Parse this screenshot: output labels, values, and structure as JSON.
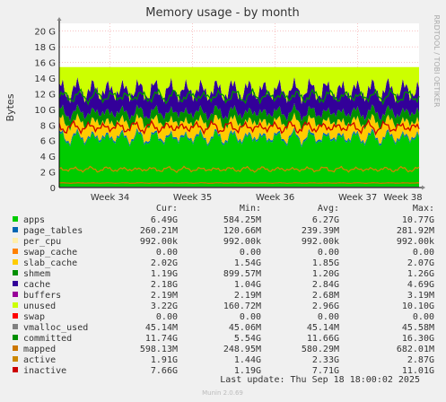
{
  "chart_data": {
    "type": "area",
    "title": "Memory usage - by month",
    "ylabel": "Bytes",
    "side_label": "RRDTOOL / TOBI OETIKER",
    "ylim": [
      0,
      21
    ],
    "yticks": [
      {
        "v": 0,
        "label": "0"
      },
      {
        "v": 2,
        "label": "2 G"
      },
      {
        "v": 4,
        "label": "4 G"
      },
      {
        "v": 6,
        "label": "6 G"
      },
      {
        "v": 8,
        "label": "8 G"
      },
      {
        "v": 10,
        "label": "10 G"
      },
      {
        "v": 12,
        "label": "12 G"
      },
      {
        "v": 14,
        "label": "14 G"
      },
      {
        "v": 16,
        "label": "16 G"
      },
      {
        "v": 18,
        "label": "18 G"
      },
      {
        "v": 20,
        "label": "20 G"
      }
    ],
    "xlim": [
      0,
      30.5
    ],
    "xticks": [
      {
        "v": 4.3,
        "label": "Week 34"
      },
      {
        "v": 11.3,
        "label": "Week 35"
      },
      {
        "v": 18.3,
        "label": "Week 36"
      },
      {
        "v": 25.3,
        "label": "Week 37"
      },
      {
        "v": 32.3,
        "label": "Week 38"
      }
    ],
    "stack_order": [
      "apps",
      "page_tables",
      "per_cpu",
      "swap_cache",
      "slab_cache",
      "shmem",
      "cache",
      "buffers",
      "unused",
      "swap"
    ],
    "line_order": [
      "vmalloc_used",
      "committed",
      "mapped",
      "active",
      "inactive"
    ],
    "columns": {
      "cur": "Cur:",
      "min": "Min:",
      "avg": "Avg:",
      "max": "Max:"
    },
    "series": [
      {
        "key": "apps",
        "name": "apps",
        "color": "#00cc00",
        "cur": "6.49G",
        "min": "584.25M",
        "avg": "6.27G",
        "max": "10.77G",
        "base": 6.3,
        "amp": 1.2
      },
      {
        "key": "page_tables",
        "name": "page_tables",
        "color": "#0066b3",
        "cur": "260.21M",
        "min": "120.66M",
        "avg": "239.39M",
        "max": "281.92M",
        "base": 0.24,
        "amp": 0.02
      },
      {
        "key": "per_cpu",
        "name": "per_cpu",
        "color": "#ffeeaa",
        "cur": "992.00k",
        "min": "992.00k",
        "avg": "992.00k",
        "max": "992.00k",
        "base": 0.001,
        "amp": 0
      },
      {
        "key": "swap_cache",
        "name": "swap_cache",
        "color": "#ff8000",
        "cur": "0.00",
        "min": "0.00",
        "avg": "0.00",
        "max": "0.00",
        "base": 0,
        "amp": 0
      },
      {
        "key": "slab_cache",
        "name": "slab_cache",
        "color": "#ffcc00",
        "cur": "2.02G",
        "min": "1.54G",
        "avg": "1.85G",
        "max": "2.07G",
        "base": 1.85,
        "amp": 0.25
      },
      {
        "key": "shmem",
        "name": "shmem",
        "color": "#008f00",
        "cur": "1.19G",
        "min": "899.57M",
        "avg": "1.20G",
        "max": "1.26G",
        "base": 1.2,
        "amp": 0.08
      },
      {
        "key": "cache",
        "name": "cache",
        "color": "#330099",
        "cur": "2.18G",
        "min": "1.04G",
        "avg": "2.84G",
        "max": "4.69G",
        "base": 2.84,
        "amp": 0.9
      },
      {
        "key": "buffers",
        "name": "buffers",
        "color": "#990099",
        "cur": "2.19M",
        "min": "2.19M",
        "avg": "2.68M",
        "max": "3.19M",
        "base": 0.003,
        "amp": 0
      },
      {
        "key": "unused",
        "name": "unused",
        "color": "#ccff00",
        "cur": "3.22G",
        "min": "160.72M",
        "avg": "2.96G",
        "max": "10.10G",
        "base": 2.96,
        "amp": 0
      },
      {
        "key": "swap",
        "name": "swap",
        "color": "#ff0000",
        "cur": "0.00",
        "min": "0.00",
        "avg": "0.00",
        "max": "0.00",
        "base": 0,
        "amp": 0
      },
      {
        "key": "vmalloc_used",
        "name": "vmalloc_used",
        "color": "#808080",
        "cur": "45.14M",
        "min": "45.06M",
        "avg": "45.14M",
        "max": "45.58M",
        "base": 0.045,
        "amp": 0
      },
      {
        "key": "committed",
        "name": "committed",
        "color": "#008f00",
        "cur": "11.74G",
        "min": "5.54G",
        "avg": "11.66G",
        "max": "16.30G",
        "base": 11.66,
        "amp": 1.0
      },
      {
        "key": "mapped",
        "name": "mapped",
        "color": "#cc7700",
        "cur": "598.13M",
        "min": "248.95M",
        "avg": "580.29M",
        "max": "682.01M",
        "base": 0.58,
        "amp": 0.05
      },
      {
        "key": "active",
        "name": "active",
        "color": "#cc8800",
        "cur": "1.91G",
        "min": "1.44G",
        "avg": "2.33G",
        "max": "2.87G",
        "base": 2.33,
        "amp": 0.4
      },
      {
        "key": "inactive",
        "name": "inactive",
        "color": "#cc0000",
        "cur": "7.66G",
        "min": "1.19G",
        "avg": "7.71G",
        "max": "11.01G",
        "base": 7.71,
        "amp": 0.9
      }
    ],
    "grid": true,
    "legend_position": "bottom"
  },
  "footer": {
    "last_update": "Last update: Thu Sep 18 18:00:02 2025",
    "version": "Munin 2.0.69"
  }
}
